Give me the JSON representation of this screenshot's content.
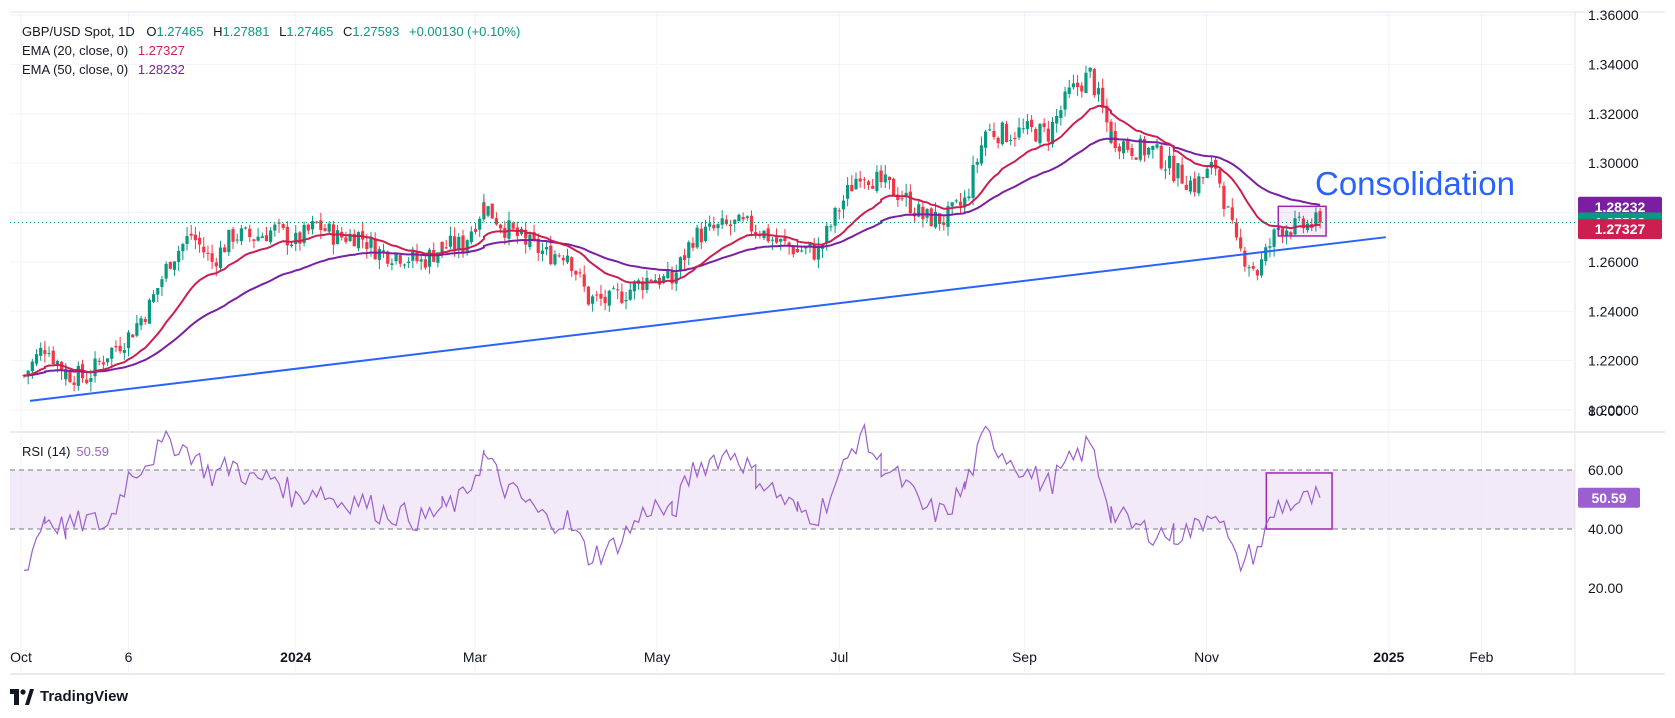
{
  "legend": {
    "symbol": "GBP/USD Spot, 1D",
    "open_label": "O",
    "open": "1.27465",
    "high_label": "H",
    "high": "1.27881",
    "low_label": "L",
    "low": "1.27465",
    "close_label": "C",
    "close": "1.27593",
    "change": "+0.00130 (+0.10%)",
    "ema20_label": "EMA (20, close, 0)",
    "ema20_value": "1.27327",
    "ema50_label": "EMA (50, close, 0)",
    "ema50_value": "1.28232"
  },
  "rsi_legend": {
    "label": "RSI (14)",
    "value": "50.59"
  },
  "annotation": "Consolidation",
  "branding": {
    "text": "TradingView"
  },
  "colors": {
    "up": "#089981",
    "down": "#f23645",
    "ema20": "#cc1f50",
    "ema50": "#7b1fa2",
    "trendline": "#2962ff",
    "rsi": "#9c5fcf",
    "rsi_band": "#ede3f7",
    "box": "#9c27b0"
  },
  "chart_data": [
    {
      "type": "candlestick",
      "title": "GBP/USD Spot, 1D",
      "ylim": [
        1.19,
        1.36
      ],
      "y_ticks": [
        "1.20000",
        "1.22000",
        "1.24000",
        "1.26000",
        "1.28000",
        "1.30000",
        "1.32000",
        "1.34000",
        "1.36000"
      ],
      "y_tick_values": [
        1.2,
        1.22,
        1.24,
        1.26,
        1.28,
        1.3,
        1.32,
        1.34,
        1.36
      ],
      "x_ticks": [
        "Oct",
        "6",
        "2024",
        "Mar",
        "May",
        "Jul",
        "Sep",
        "Nov",
        "2025",
        "Feb"
      ],
      "x_tick_dates": [
        "2023-10-01",
        "2023-11-06",
        "2024-01-01",
        "2024-03-01",
        "2024-05-01",
        "2024-07-01",
        "2024-09-01",
        "2024-11-01",
        "2025-01-01",
        "2025-02-01"
      ],
      "bold_ticks": [
        "2024",
        "2025"
      ],
      "close_series": {
        "dates": [
          "2023-10-02",
          "2023-10-09",
          "2023-10-16",
          "2023-10-23",
          "2023-10-30",
          "2023-11-06",
          "2023-11-13",
          "2023-11-20",
          "2023-11-27",
          "2023-12-04",
          "2023-12-11",
          "2023-12-18",
          "2023-12-25",
          "2024-01-01",
          "2024-01-08",
          "2024-01-15",
          "2024-01-22",
          "2024-01-29",
          "2024-02-05",
          "2024-02-12",
          "2024-02-19",
          "2024-02-26",
          "2024-03-04",
          "2024-03-11",
          "2024-03-18",
          "2024-03-25",
          "2024-04-01",
          "2024-04-08",
          "2024-04-15",
          "2024-04-22",
          "2024-04-29",
          "2024-05-06",
          "2024-05-13",
          "2024-05-20",
          "2024-05-27",
          "2024-06-03",
          "2024-06-10",
          "2024-06-17",
          "2024-06-24",
          "2024-07-01",
          "2024-07-08",
          "2024-07-15",
          "2024-07-22",
          "2024-07-29",
          "2024-08-05",
          "2024-08-12",
          "2024-08-19",
          "2024-08-26",
          "2024-09-02",
          "2024-09-09",
          "2024-09-16",
          "2024-09-23",
          "2024-09-30",
          "2024-10-07",
          "2024-10-14",
          "2024-10-21",
          "2024-10-28",
          "2024-11-04",
          "2024-11-11",
          "2024-11-18",
          "2024-11-25",
          "2024-12-02",
          "2024-12-09"
        ],
        "close": [
          1.214,
          1.226,
          1.215,
          1.213,
          1.223,
          1.23,
          1.242,
          1.261,
          1.271,
          1.26,
          1.271,
          1.27,
          1.273,
          1.268,
          1.275,
          1.27,
          1.271,
          1.264,
          1.263,
          1.26,
          1.266,
          1.267,
          1.283,
          1.274,
          1.268,
          1.263,
          1.264,
          1.245,
          1.244,
          1.249,
          1.254,
          1.252,
          1.27,
          1.273,
          1.275,
          1.274,
          1.268,
          1.265,
          1.264,
          1.282,
          1.297,
          1.292,
          1.287,
          1.278,
          1.277,
          1.284,
          1.313,
          1.312,
          1.313,
          1.312,
          1.328,
          1.336,
          1.311,
          1.306,
          1.305,
          1.297,
          1.291,
          1.299,
          1.266,
          1.256,
          1.274,
          1.274,
          1.276
        ]
      },
      "ema20": {
        "label": "EMA (20, close, 0)",
        "last": 1.27327
      },
      "ema50": {
        "label": "EMA (50, close, 0)",
        "last": 1.28232
      },
      "last_close": 1.27593,
      "trendline": {
        "from": [
          "2023-10-04",
          1.2037
        ],
        "to": [
          "2024-12-31",
          1.27
        ]
      },
      "price_labels": [
        {
          "text": "1.28232",
          "value": 1.28232,
          "color": "#7b1fa2"
        },
        {
          "text": "1.27593",
          "value": 1.27593,
          "color": "#089981"
        },
        {
          "text": "1.27327",
          "value": 1.27327,
          "color": "#cc1f50"
        }
      ]
    },
    {
      "type": "line",
      "title": "RSI (14)",
      "ylim": [
        15,
        82
      ],
      "y_ticks": [
        "20.00",
        "40.00",
        "60.00",
        "80.00"
      ],
      "y_tick_values": [
        20,
        40,
        60,
        80
      ],
      "band": [
        40,
        60
      ],
      "last": 50.59,
      "last_label": "50.59",
      "series": {
        "dates": [
          "2023-10-02",
          "2023-10-09",
          "2023-10-16",
          "2023-10-23",
          "2023-10-30",
          "2023-11-06",
          "2023-11-13",
          "2023-11-20",
          "2023-11-27",
          "2023-12-04",
          "2023-12-11",
          "2023-12-18",
          "2023-12-25",
          "2024-01-01",
          "2024-01-08",
          "2024-01-15",
          "2024-01-22",
          "2024-01-29",
          "2024-02-05",
          "2024-02-12",
          "2024-02-19",
          "2024-02-26",
          "2024-03-04",
          "2024-03-11",
          "2024-03-18",
          "2024-03-25",
          "2024-04-01",
          "2024-04-08",
          "2024-04-15",
          "2024-04-22",
          "2024-04-29",
          "2024-05-06",
          "2024-05-13",
          "2024-05-20",
          "2024-05-27",
          "2024-06-03",
          "2024-06-10",
          "2024-06-17",
          "2024-06-24",
          "2024-07-01",
          "2024-07-08",
          "2024-07-15",
          "2024-07-22",
          "2024-07-29",
          "2024-08-05",
          "2024-08-12",
          "2024-08-19",
          "2024-08-26",
          "2024-09-02",
          "2024-09-09",
          "2024-09-16",
          "2024-09-23",
          "2024-09-30",
          "2024-10-07",
          "2024-10-14",
          "2024-10-21",
          "2024-10-28",
          "2024-11-04",
          "2024-11-11",
          "2024-11-18",
          "2024-11-25",
          "2024-12-02",
          "2024-12-09"
        ],
        "values": [
          26,
          44,
          40,
          43,
          41,
          58,
          64,
          70,
          66,
          58,
          62,
          56,
          58,
          50,
          54,
          49,
          50,
          46,
          45,
          43,
          47,
          50,
          65,
          54,
          49,
          43,
          43,
          31,
          33,
          40,
          48,
          45,
          60,
          64,
          66,
          58,
          52,
          46,
          45,
          57,
          73,
          62,
          56,
          47,
          45,
          54,
          72,
          65,
          59,
          55,
          62,
          69,
          46,
          41,
          39,
          38,
          40,
          48,
          28,
          33,
          48,
          49,
          50.59
        ]
      }
    }
  ]
}
